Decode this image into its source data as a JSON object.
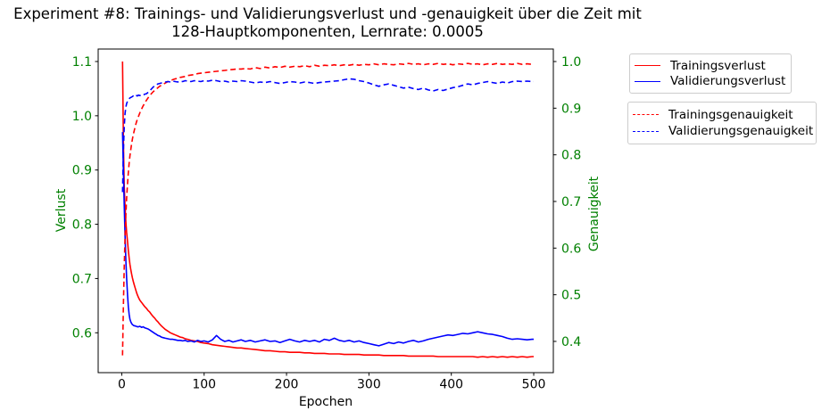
{
  "title": {
    "line1": "Experiment #8: Trainings- und Validierungsverlust und -genauigkeit über die Zeit mit",
    "line2": "128-Hauptkomponenten, Lernrate: 0.0005"
  },
  "axes": {
    "x_label": "Epochen",
    "left_label": "Verlust",
    "right_label": "Genauigkeit",
    "label_color": "#008000"
  },
  "legend_loss": {
    "items": [
      {
        "label": "Trainingsverlust"
      },
      {
        "label": "Validierungsverlust"
      }
    ]
  },
  "legend_acc": {
    "items": [
      {
        "label": "Trainingsgenauigkeit"
      },
      {
        "label": "Validierungsgenauigkeit"
      }
    ]
  },
  "chart_data": {
    "type": "line",
    "title": "Experiment #8: Trainings- und Validierungsverlust und -genauigkeit über die Zeit mit 128-Hauptkomponenten, Lernrate: 0.0005",
    "xlabel": "Epochen",
    "ylabel_left": "Verlust",
    "ylabel_right": "Genauigkeit",
    "grid": false,
    "legend_position": "outside-right",
    "x_axis": {
      "lim": [
        -28.6,
        523.8
      ],
      "ticks": [
        0,
        100,
        200,
        300,
        400,
        500
      ]
    },
    "loss_axis": {
      "lim": [
        0.5265,
        1.123
      ],
      "ticks": [
        "0.6",
        "0.7",
        "0.8",
        "0.9",
        "1.0",
        "1.1"
      ],
      "color": "#008000"
    },
    "acc_axis": {
      "lim": [
        0.333,
        1.0268
      ],
      "ticks": [
        "0.4",
        "0.5",
        "0.6",
        "0.7",
        "0.8",
        "0.9",
        "1.0"
      ],
      "color": "#008000"
    },
    "epochs": [
      1,
      2,
      3,
      4,
      5,
      6,
      7,
      8,
      9,
      10,
      11,
      12,
      13,
      14,
      15,
      16,
      17,
      18,
      19,
      20,
      22,
      24,
      26,
      28,
      30,
      32,
      34,
      36,
      38,
      40,
      42,
      44,
      46,
      48,
      50,
      53,
      56,
      59,
      62,
      65,
      68,
      71,
      74,
      77,
      80,
      84,
      88,
      92,
      96,
      100,
      105,
      110,
      115,
      120,
      125,
      130,
      135,
      140,
      145,
      150,
      156,
      162,
      168,
      174,
      180,
      186,
      192,
      198,
      204,
      210,
      216,
      222,
      228,
      234,
      240,
      246,
      252,
      258,
      264,
      270,
      276,
      282,
      288,
      294,
      300,
      306,
      312,
      318,
      324,
      330,
      336,
      342,
      348,
      354,
      360,
      366,
      372,
      378,
      384,
      390,
      396,
      402,
      408,
      414,
      420,
      426,
      432,
      438,
      444,
      450,
      456,
      462,
      468,
      474,
      480,
      486,
      492,
      498,
      500
    ],
    "series": [
      {
        "name": "Trainingsverlust",
        "axis": "loss",
        "color": "#ff0000",
        "style": "solid",
        "values": [
          1.1,
          0.95,
          0.87,
          0.835,
          0.805,
          0.785,
          0.768,
          0.752,
          0.738,
          0.726,
          0.716,
          0.708,
          0.701,
          0.695,
          0.689,
          0.684,
          0.679,
          0.674,
          0.67,
          0.666,
          0.66,
          0.656,
          0.652,
          0.648,
          0.645,
          0.641,
          0.638,
          0.634,
          0.63,
          0.627,
          0.623,
          0.62,
          0.616,
          0.613,
          0.61,
          0.606,
          0.603,
          0.6,
          0.598,
          0.596,
          0.594,
          0.592,
          0.591,
          0.589,
          0.588,
          0.586,
          0.585,
          0.584,
          0.582,
          0.581,
          0.58,
          0.578,
          0.577,
          0.576,
          0.575,
          0.574,
          0.573,
          0.572,
          0.572,
          0.571,
          0.57,
          0.569,
          0.568,
          0.567,
          0.567,
          0.566,
          0.565,
          0.565,
          0.564,
          0.564,
          0.564,
          0.563,
          0.563,
          0.562,
          0.562,
          0.562,
          0.561,
          0.561,
          0.561,
          0.56,
          0.56,
          0.56,
          0.56,
          0.559,
          0.559,
          0.559,
          0.559,
          0.558,
          0.558,
          0.558,
          0.558,
          0.558,
          0.557,
          0.557,
          0.557,
          0.557,
          0.557,
          0.557,
          0.556,
          0.556,
          0.556,
          0.556,
          0.556,
          0.556,
          0.556,
          0.556,
          0.555,
          0.556,
          0.555,
          0.556,
          0.555,
          0.556,
          0.555,
          0.556,
          0.555,
          0.556,
          0.555,
          0.556,
          0.556
        ]
      },
      {
        "name": "Validierungsverlust",
        "axis": "loss",
        "color": "#0000ff",
        "style": "solid",
        "values": [
          0.97,
          0.895,
          0.835,
          0.78,
          0.735,
          0.7,
          0.67,
          0.648,
          0.634,
          0.625,
          0.62,
          0.617,
          0.615,
          0.614,
          0.613,
          0.613,
          0.612,
          0.612,
          0.611,
          0.611,
          0.612,
          0.61,
          0.611,
          0.609,
          0.608,
          0.607,
          0.605,
          0.603,
          0.601,
          0.599,
          0.597,
          0.595,
          0.594,
          0.592,
          0.591,
          0.59,
          0.589,
          0.588,
          0.588,
          0.587,
          0.586,
          0.586,
          0.585,
          0.586,
          0.584,
          0.585,
          0.583,
          0.586,
          0.584,
          0.585,
          0.583,
          0.587,
          0.595,
          0.588,
          0.584,
          0.586,
          0.583,
          0.585,
          0.587,
          0.584,
          0.586,
          0.583,
          0.585,
          0.587,
          0.584,
          0.585,
          0.582,
          0.585,
          0.588,
          0.585,
          0.583,
          0.586,
          0.584,
          0.586,
          0.583,
          0.588,
          0.586,
          0.59,
          0.586,
          0.584,
          0.586,
          0.583,
          0.585,
          0.582,
          0.58,
          0.578,
          0.576,
          0.579,
          0.582,
          0.58,
          0.583,
          0.581,
          0.584,
          0.586,
          0.583,
          0.585,
          0.588,
          0.59,
          0.592,
          0.594,
          0.596,
          0.595,
          0.597,
          0.599,
          0.598,
          0.6,
          0.602,
          0.6,
          0.598,
          0.597,
          0.595,
          0.593,
          0.59,
          0.588,
          0.589,
          0.588,
          0.587,
          0.588,
          0.588
        ]
      },
      {
        "name": "Trainingsgenauigkeit",
        "axis": "acc",
        "color": "#ff0000",
        "style": "dashed",
        "values": [
          0.37,
          0.48,
          0.56,
          0.622,
          0.67,
          0.708,
          0.738,
          0.762,
          0.782,
          0.798,
          0.812,
          0.824,
          0.834,
          0.843,
          0.851,
          0.858,
          0.865,
          0.871,
          0.876,
          0.881,
          0.89,
          0.898,
          0.905,
          0.911,
          0.917,
          0.922,
          0.927,
          0.931,
          0.935,
          0.938,
          0.941,
          0.944,
          0.947,
          0.949,
          0.951,
          0.954,
          0.957,
          0.959,
          0.961,
          0.963,
          0.964,
          0.966,
          0.967,
          0.968,
          0.97,
          0.971,
          0.972,
          0.974,
          0.975,
          0.976,
          0.977,
          0.978,
          0.979,
          0.98,
          0.981,
          0.982,
          0.983,
          0.984,
          0.984,
          0.985,
          0.984,
          0.987,
          0.985,
          0.988,
          0.986,
          0.989,
          0.987,
          0.99,
          0.988,
          0.99,
          0.989,
          0.991,
          0.989,
          0.992,
          0.99,
          0.992,
          0.991,
          0.993,
          0.991,
          0.993,
          0.992,
          0.994,
          0.992,
          0.994,
          0.993,
          0.995,
          0.993,
          0.995,
          0.994,
          0.993,
          0.995,
          0.994,
          0.996,
          0.994,
          0.995,
          0.993,
          0.995,
          0.994,
          0.996,
          0.994,
          0.995,
          0.993,
          0.995,
          0.994,
          0.996,
          0.994,
          0.995,
          0.993,
          0.995,
          0.994,
          0.996,
          0.994,
          0.995,
          0.994,
          0.996,
          0.994,
          0.995,
          0.994,
          0.995
        ]
      },
      {
        "name": "Validierungsgenauigkeit",
        "axis": "acc",
        "color": "#0000ff",
        "style": "dashed",
        "values": [
          0.72,
          0.81,
          0.86,
          0.888,
          0.902,
          0.91,
          0.915,
          0.918,
          0.92,
          0.922,
          0.923,
          0.924,
          0.925,
          0.926,
          0.925,
          0.924,
          0.926,
          0.927,
          0.926,
          0.928,
          0.927,
          0.929,
          0.928,
          0.93,
          0.931,
          0.934,
          0.937,
          0.941,
          0.945,
          0.948,
          0.95,
          0.952,
          0.953,
          0.954,
          0.955,
          0.956,
          0.957,
          0.956,
          0.958,
          0.957,
          0.956,
          0.958,
          0.957,
          0.959,
          0.958,
          0.957,
          0.959,
          0.958,
          0.957,
          0.959,
          0.958,
          0.96,
          0.959,
          0.957,
          0.958,
          0.956,
          0.958,
          0.957,
          0.959,
          0.958,
          0.956,
          0.954,
          0.956,
          0.955,
          0.957,
          0.955,
          0.953,
          0.955,
          0.957,
          0.956,
          0.954,
          0.956,
          0.955,
          0.953,
          0.955,
          0.956,
          0.957,
          0.958,
          0.959,
          0.961,
          0.963,
          0.962,
          0.959,
          0.957,
          0.954,
          0.95,
          0.947,
          0.95,
          0.952,
          0.949,
          0.946,
          0.943,
          0.945,
          0.942,
          0.94,
          0.943,
          0.939,
          0.937,
          0.94,
          0.938,
          0.941,
          0.944,
          0.946,
          0.949,
          0.952,
          0.95,
          0.953,
          0.955,
          0.957,
          0.955,
          0.953,
          0.956,
          0.954,
          0.957,
          0.958,
          0.957,
          0.958,
          0.957,
          0.957
        ]
      }
    ]
  }
}
